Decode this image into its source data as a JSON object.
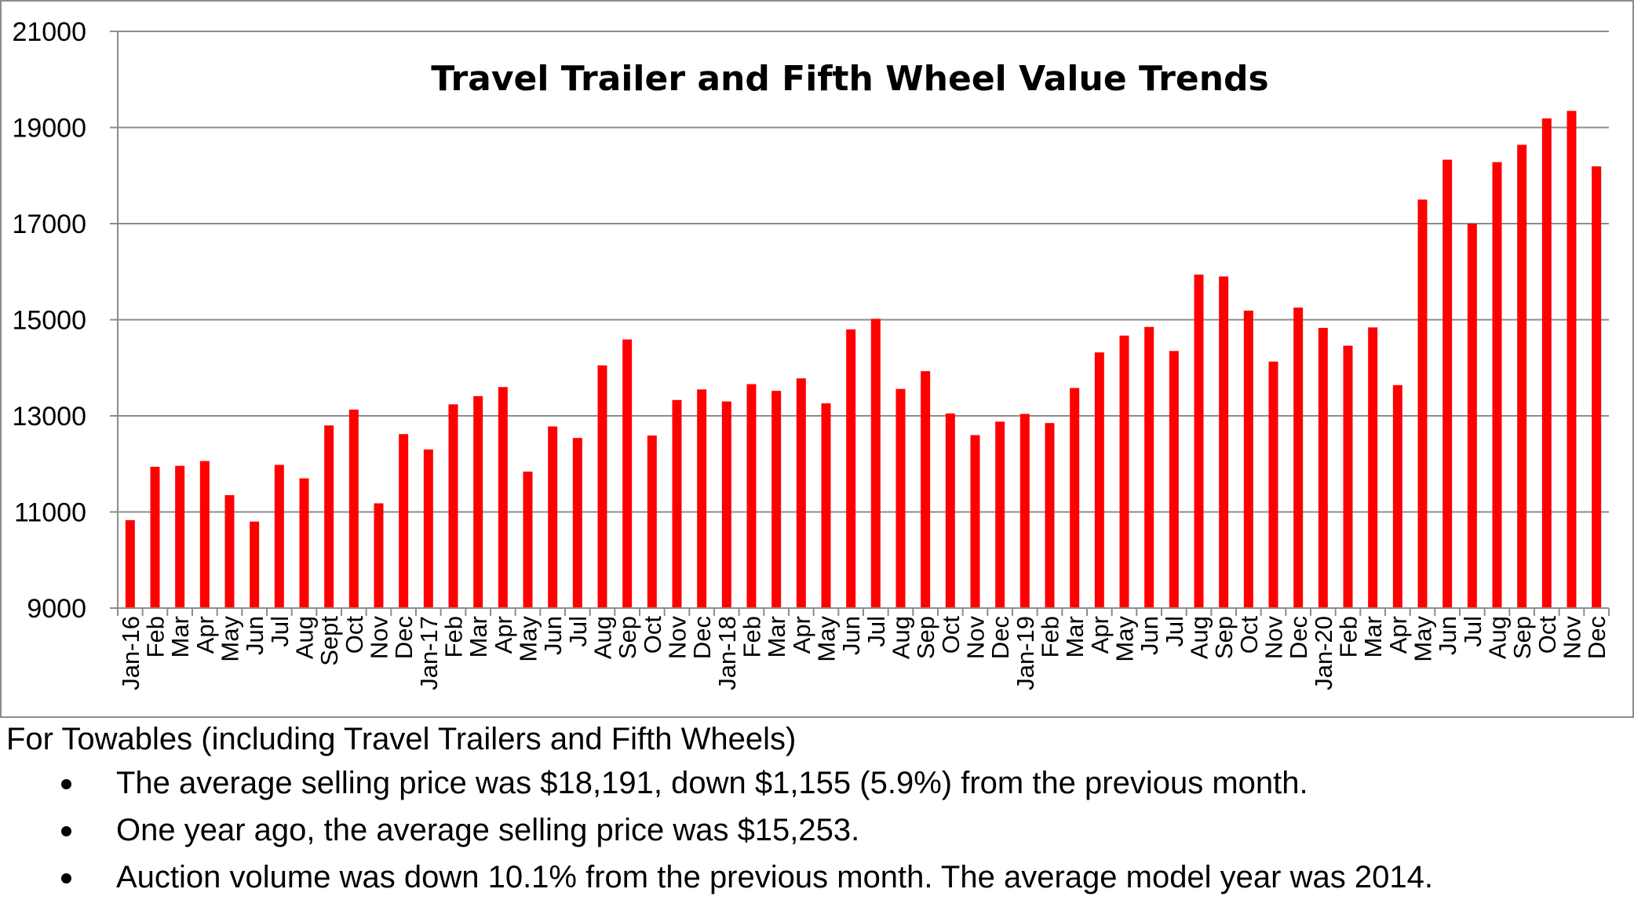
{
  "chart_data": {
    "type": "bar",
    "title": "Travel Trailer and Fifth Wheel Value Trends",
    "xlabel": "",
    "ylabel": "",
    "ylim": [
      9000,
      21000
    ],
    "yticks": [
      9000,
      11000,
      13000,
      15000,
      17000,
      19000,
      21000
    ],
    "grid": true,
    "legend": "none",
    "bar_color": "#ff0000",
    "categories": [
      "Jan-16",
      "Feb",
      "Mar",
      "Apr",
      "May",
      "Jun",
      "Jul",
      "Aug",
      "Sept",
      "Oct",
      "Nov",
      "Dec",
      "Jan-17",
      "Feb",
      "Mar",
      "Apr",
      "May",
      "Jun",
      "Jul",
      "Aug",
      "Sep",
      "Oct",
      "Nov",
      "Dec",
      "Jan-18",
      "Feb",
      "Mar",
      "Apr",
      "May",
      "Jun",
      "Jul",
      "Aug",
      "Sep",
      "Oct",
      "Nov",
      "Dec",
      "Jan-19",
      "Feb",
      "Mar",
      "Apr",
      "May",
      "Jun",
      "Jul",
      "Aug",
      "Sep",
      "Oct",
      "Nov",
      "Dec",
      "Jan-20",
      "Feb",
      "Mar",
      "Apr",
      "May",
      "Jun",
      "Jul",
      "Aug",
      "Sep",
      "Oct",
      "Nov",
      "Dec"
    ],
    "values": [
      10830,
      11940,
      11960,
      12060,
      11350,
      10800,
      11980,
      11700,
      12800,
      13130,
      11180,
      12620,
      12300,
      13240,
      13410,
      13600,
      11840,
      12780,
      12540,
      14050,
      14590,
      12590,
      13330,
      13550,
      13300,
      13660,
      13520,
      13780,
      13260,
      14800,
      15020,
      13560,
      13930,
      13050,
      12600,
      12880,
      13040,
      12850,
      13580,
      14320,
      14670,
      14850,
      14350,
      15940,
      15900,
      15190,
      14130,
      15253,
      14830,
      14460,
      14840,
      13640,
      17500,
      18330,
      17000,
      18280,
      18640,
      19190,
      19346,
      18191
    ]
  },
  "notes": {
    "heading": "For Towables (including Travel Trailers and Fifth Wheels)",
    "items": [
      "The average selling price was $18,191, down $1,155 (5.9%) from the previous month.",
      "One year ago, the average selling price was $15,253.",
      "Auction volume was down 10.1% from the previous month.  The average model year was 2014."
    ]
  }
}
